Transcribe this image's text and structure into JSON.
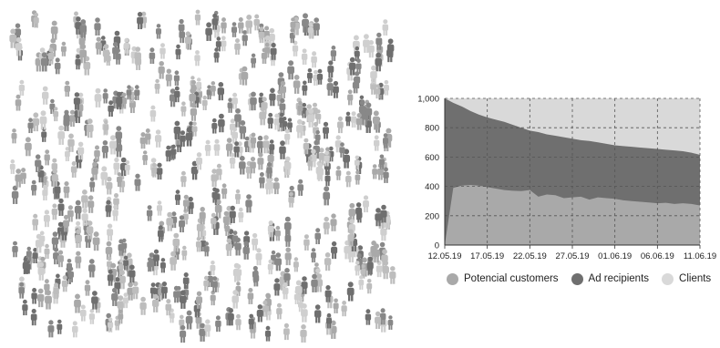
{
  "crowd": {
    "colors": [
      "#6f6f6f",
      "#a9a9a9",
      "#cfcfcf",
      "#bdbdbd",
      "#888888"
    ]
  },
  "chart_data": {
    "type": "area",
    "x": [
      "12.05.19",
      "13.05.19",
      "14.05.19",
      "15.05.19",
      "16.05.19",
      "17.05.19",
      "18.05.19",
      "19.05.19",
      "20.05.19",
      "21.05.19",
      "22.05.19",
      "23.05.19",
      "24.05.19",
      "25.05.19",
      "26.05.19",
      "27.05.19",
      "28.05.19",
      "29.05.19",
      "30.05.19",
      "31.05.19",
      "01.06.19",
      "02.06.19",
      "03.06.19",
      "04.06.19",
      "05.06.19",
      "06.06.19",
      "07.06.19",
      "08.06.19",
      "09.06.19",
      "10.06.19",
      "11.06.19"
    ],
    "x_tick_labels": [
      "12.05.19",
      "17.05.19",
      "22.05.19",
      "27.05.19",
      "01.06.19",
      "06.06.19",
      "11.06.19"
    ],
    "ylim": [
      0,
      1000
    ],
    "y_tick_labels": [
      "0",
      "200",
      "400",
      "600",
      "800",
      "1,000"
    ],
    "grid": true,
    "legend_position": "bottom",
    "series": [
      {
        "name": "Potencial customers",
        "color": "#a9a9a9",
        "values": [
          0,
          390,
          405,
          410,
          405,
          395,
          385,
          375,
          370,
          368,
          375,
          330,
          345,
          340,
          320,
          325,
          330,
          310,
          325,
          320,
          315,
          305,
          300,
          295,
          290,
          285,
          288,
          280,
          285,
          280,
          270
        ]
      },
      {
        "name": "Ad recipients",
        "color": "#6f6f6f",
        "values": [
          1000,
          970,
          945,
          915,
          890,
          870,
          855,
          840,
          820,
          800,
          780,
          770,
          755,
          745,
          735,
          725,
          715,
          710,
          700,
          690,
          680,
          675,
          670,
          665,
          660,
          655,
          650,
          645,
          640,
          630,
          615
        ]
      },
      {
        "name": "Clients",
        "color": "#d9d9d9",
        "values": [
          1000,
          1000,
          1000,
          1000,
          1000,
          1000,
          1000,
          1000,
          1000,
          1000,
          1000,
          1000,
          1000,
          1000,
          1000,
          1000,
          1000,
          1000,
          1000,
          1000,
          1000,
          1000,
          1000,
          1000,
          1000,
          1000,
          1000,
          1000,
          1000,
          1000,
          1000
        ]
      }
    ]
  }
}
